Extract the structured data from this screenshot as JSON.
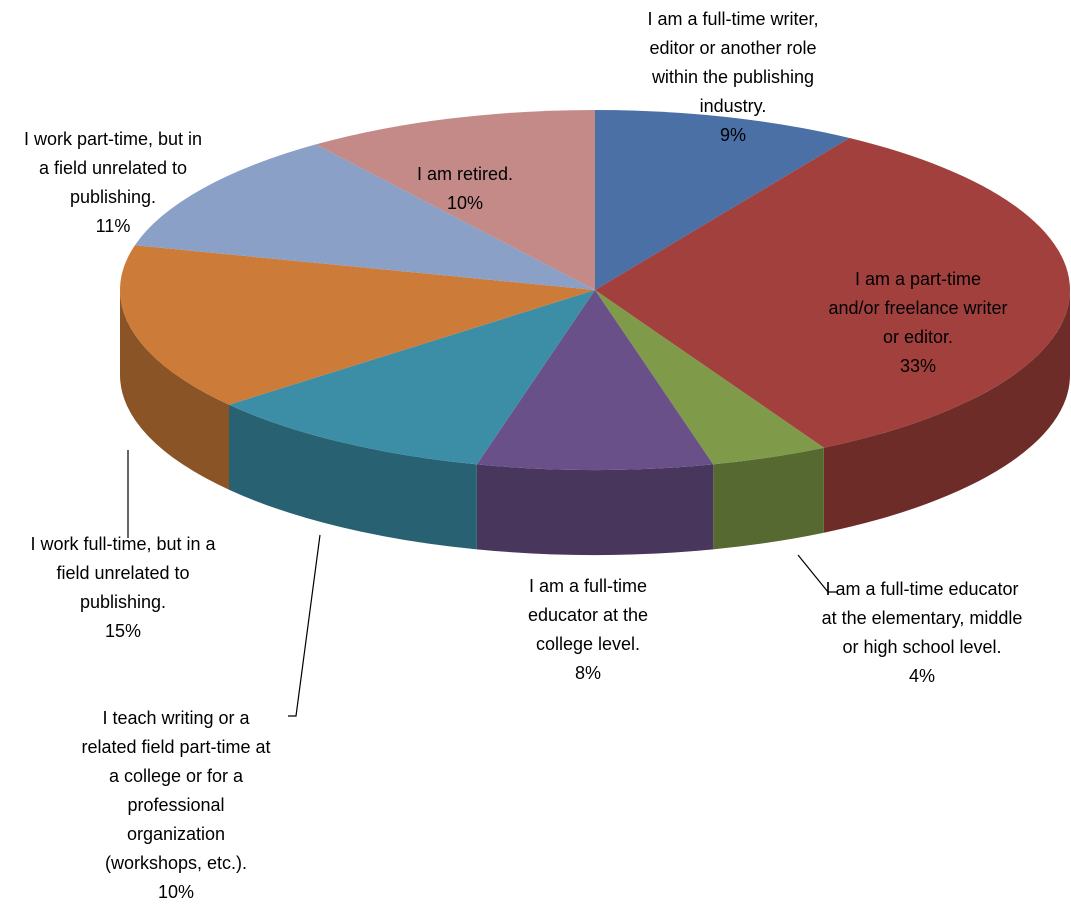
{
  "chart_data": {
    "type": "pie3d",
    "categories": [
      "I am a full-time writer, editor or another role within the publishing industry.",
      "I am a part-time and/or freelance writer or editor.",
      "I am a full-time educator at the elementary, middle or high school level.",
      "I am a full-time educator at the college level.",
      "I teach writing or a related field part-time at a college or for a professional organization (workshops, etc.).",
      "I work full-time, but in a field unrelated to publishing.",
      "I work part-time, but in a field unrelated to publishing.",
      "I am retired."
    ],
    "values": [
      9,
      33,
      4,
      8,
      10,
      15,
      11,
      10
    ],
    "value_labels": [
      "9%",
      "33%",
      "4%",
      "8%",
      "10%",
      "15%",
      "11%",
      "10%"
    ],
    "colors": [
      "#4a70a6",
      "#a2403d",
      "#7f9a48",
      "#6a5088",
      "#3b8ea6",
      "#cd7b38",
      "#8aa0c7",
      "#c38a88"
    ]
  }
}
